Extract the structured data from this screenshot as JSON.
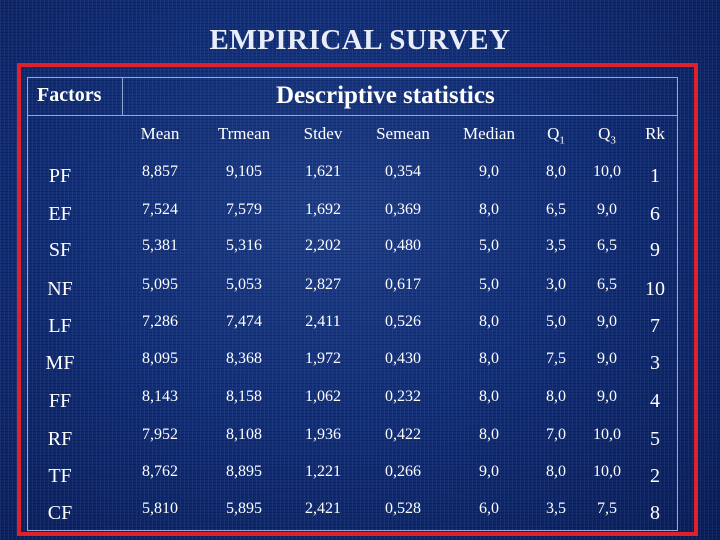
{
  "title": "EMPIRICAL SURVEY",
  "table": {
    "factors_header": "Factors",
    "group_header": "Descriptive statistics",
    "columns": [
      {
        "label": "Mean",
        "sub": ""
      },
      {
        "label": "Trmean",
        "sub": ""
      },
      {
        "label": "Stdev",
        "sub": ""
      },
      {
        "label": "Semean",
        "sub": ""
      },
      {
        "label": "Median",
        "sub": ""
      },
      {
        "label": "Q",
        "sub": "1"
      },
      {
        "label": "Q",
        "sub": "3"
      },
      {
        "label": "Rk",
        "sub": ""
      }
    ],
    "rows": [
      {
        "factor": "PF",
        "values": [
          "8,857",
          "9,105",
          "1,621",
          "0,354",
          "9,0",
          "8,0",
          "10,0"
        ],
        "rk": "1"
      },
      {
        "factor": "EF",
        "values": [
          "7,524",
          "7,579",
          "1,692",
          "0,369",
          "8,0",
          "6,5",
          "9,0"
        ],
        "rk": "6"
      },
      {
        "factor": "SF",
        "values": [
          "5,381",
          "5,316",
          "2,202",
          "0,480",
          "5,0",
          "3,5",
          "6,5"
        ],
        "rk": "9"
      },
      {
        "factor": "NF",
        "values": [
          "5,095",
          "5,053",
          "2,827",
          "0,617",
          "5,0",
          "3,0",
          "6,5"
        ],
        "rk": "10"
      },
      {
        "factor": "LF",
        "values": [
          "7,286",
          "7,474",
          "2,411",
          "0,526",
          "8,0",
          "5,0",
          "9,0"
        ],
        "rk": "7"
      },
      {
        "factor": "MF",
        "values": [
          "8,095",
          "8,368",
          "1,972",
          "0,430",
          "8,0",
          "7,5",
          "9,0"
        ],
        "rk": "3"
      },
      {
        "factor": "FF",
        "values": [
          "8,143",
          "8,158",
          "1,062",
          "0,232",
          "8,0",
          "8,0",
          "9,0"
        ],
        "rk": "4"
      },
      {
        "factor": "RF",
        "values": [
          "7,952",
          "8,108",
          "1,936",
          "0,422",
          "8,0",
          "7,0",
          "10,0"
        ],
        "rk": "5"
      },
      {
        "factor": "TF",
        "values": [
          "8,762",
          "8,895",
          "1,221",
          "0,266",
          "9,0",
          "8,0",
          "10,0"
        ],
        "rk": "2"
      },
      {
        "factor": "CF",
        "values": [
          "5,810",
          "5,895",
          "2,421",
          "0,528",
          "6,0",
          "3,5",
          "7,5"
        ],
        "rk": "8"
      }
    ]
  },
  "colors": {
    "background": "#12307a",
    "frame": "#e0202a",
    "text": "#ffffff"
  }
}
